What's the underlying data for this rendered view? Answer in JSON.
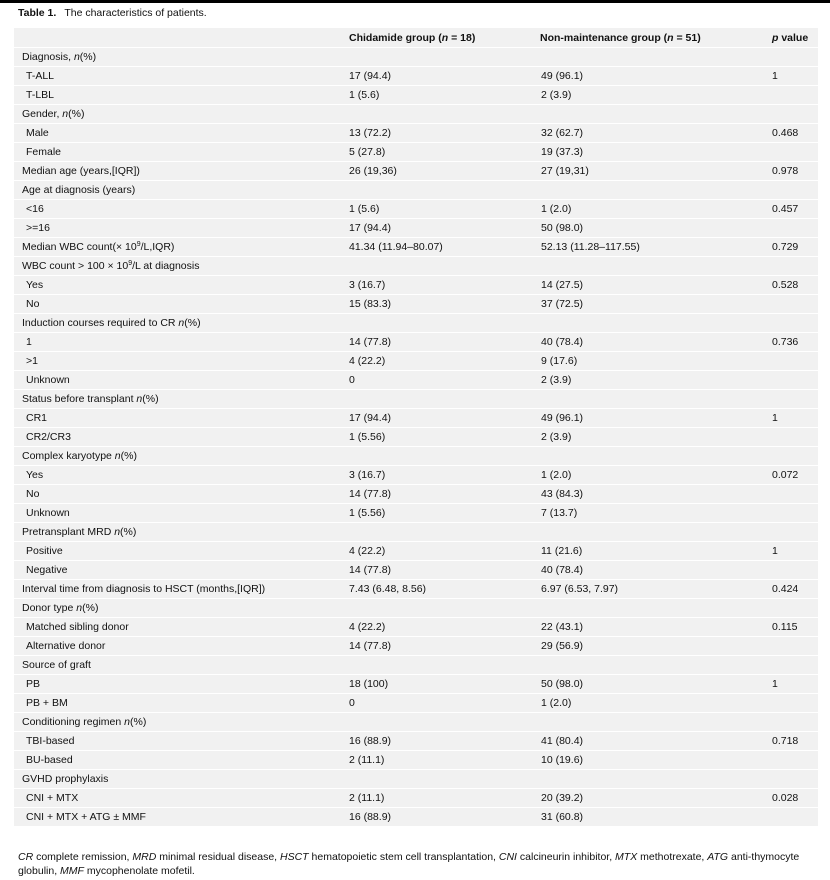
{
  "title": {
    "label": "Table 1.",
    "text": "The characteristics of patients."
  },
  "headers": [
    [
      {
        "t": ""
      }
    ],
    [
      {
        "t": "Chidamide group ("
      },
      {
        "t": "n",
        "i": 1
      },
      {
        "t": " = 18)"
      }
    ],
    [
      {
        "t": "Non-maintenance group ("
      },
      {
        "t": "n",
        "i": 1
      },
      {
        "t": " = 51)"
      }
    ],
    [
      {
        "t": "p",
        "i": 1
      },
      {
        "t": " value"
      }
    ]
  ],
  "rows": [
    {
      "label": [
        {
          "t": "Diagnosis, "
        },
        {
          "t": "n",
          "i": 1
        },
        {
          "t": "(%)"
        }
      ],
      "a": "",
      "b": "",
      "p": ""
    },
    {
      "ind": 1,
      "label": [
        {
          "t": "T-ALL"
        }
      ],
      "a": "17 (94.4)",
      "b": "49 (96.1)",
      "p": "1"
    },
    {
      "ind": 1,
      "label": [
        {
          "t": "T-LBL"
        }
      ],
      "a": "1 (5.6)",
      "b": "2 (3.9)",
      "p": ""
    },
    {
      "label": [
        {
          "t": "Gender, "
        },
        {
          "t": "n",
          "i": 1
        },
        {
          "t": "(%)"
        }
      ],
      "a": "",
      "b": "",
      "p": ""
    },
    {
      "ind": 1,
      "label": [
        {
          "t": "Male"
        }
      ],
      "a": "13 (72.2)",
      "b": "32 (62.7)",
      "p": "0.468"
    },
    {
      "ind": 1,
      "label": [
        {
          "t": "Female"
        }
      ],
      "a": "5 (27.8)",
      "b": "19 (37.3)",
      "p": ""
    },
    {
      "label": [
        {
          "t": "Median age (years,[IQR])"
        }
      ],
      "a": "26 (19,36)",
      "b": "27 (19,31)",
      "p": "0.978"
    },
    {
      "label": [
        {
          "t": "Age at diagnosis (years)"
        }
      ],
      "a": "",
      "b": "",
      "p": ""
    },
    {
      "ind": 1,
      "label": [
        {
          "t": "<16"
        }
      ],
      "a": "1 (5.6)",
      "b": "1 (2.0)",
      "p": "0.457"
    },
    {
      "ind": 1,
      "label": [
        {
          "t": ">=16"
        }
      ],
      "a": "17 (94.4)",
      "b": "50 (98.0)",
      "p": ""
    },
    {
      "label": [
        {
          "t": "Median WBC count(× 10"
        },
        {
          "t": "9",
          "s": 1
        },
        {
          "t": "/L,IQR)"
        }
      ],
      "a": "41.34 (11.94–80.07)",
      "b": "52.13 (11.28–117.55)",
      "p": "0.729"
    },
    {
      "label": [
        {
          "t": "WBC count > 100 × 10"
        },
        {
          "t": "9",
          "s": 1
        },
        {
          "t": "/L at diagnosis"
        }
      ],
      "a": "",
      "b": "",
      "p": ""
    },
    {
      "ind": 1,
      "label": [
        {
          "t": "Yes"
        }
      ],
      "a": "3 (16.7)",
      "b": "14 (27.5)",
      "p": "0.528"
    },
    {
      "ind": 1,
      "label": [
        {
          "t": "No"
        }
      ],
      "a": "15 (83.3)",
      "b": "37 (72.5)",
      "p": ""
    },
    {
      "label": [
        {
          "t": "Induction courses required to CR "
        },
        {
          "t": "n",
          "i": 1
        },
        {
          "t": "(%)"
        }
      ],
      "a": "",
      "b": "",
      "p": ""
    },
    {
      "ind": 1,
      "label": [
        {
          "t": "1"
        }
      ],
      "a": "14 (77.8)",
      "b": "40 (78.4)",
      "p": "0.736"
    },
    {
      "ind": 1,
      "label": [
        {
          "t": ">1"
        }
      ],
      "a": "4 (22.2)",
      "b": "9 (17.6)",
      "p": ""
    },
    {
      "ind": 1,
      "label": [
        {
          "t": "Unknown"
        }
      ],
      "a": "0",
      "b": "2 (3.9)",
      "p": ""
    },
    {
      "label": [
        {
          "t": "Status before transplant "
        },
        {
          "t": "n",
          "i": 1
        },
        {
          "t": "(%)"
        }
      ],
      "a": "",
      "b": "",
      "p": ""
    },
    {
      "ind": 1,
      "label": [
        {
          "t": "CR1"
        }
      ],
      "a": "17 (94.4)",
      "b": "49 (96.1)",
      "p": "1"
    },
    {
      "ind": 1,
      "label": [
        {
          "t": "CR2/CR3"
        }
      ],
      "a": "1 (5.56)",
      "b": "2 (3.9)",
      "p": ""
    },
    {
      "label": [
        {
          "t": "Complex karyotype "
        },
        {
          "t": "n",
          "i": 1
        },
        {
          "t": "(%)"
        }
      ],
      "a": "",
      "b": "",
      "p": ""
    },
    {
      "ind": 1,
      "label": [
        {
          "t": "Yes"
        }
      ],
      "a": "3 (16.7)",
      "b": "1 (2.0)",
      "p": "0.072"
    },
    {
      "ind": 1,
      "label": [
        {
          "t": "No"
        }
      ],
      "a": "14 (77.8)",
      "b": "43 (84.3)",
      "p": ""
    },
    {
      "ind": 1,
      "label": [
        {
          "t": "Unknown"
        }
      ],
      "a": "1 (5.56)",
      "b": "7 (13.7)",
      "p": ""
    },
    {
      "label": [
        {
          "t": "Pretransplant MRD "
        },
        {
          "t": "n",
          "i": 1
        },
        {
          "t": "(%)"
        }
      ],
      "a": "",
      "b": "",
      "p": ""
    },
    {
      "ind": 1,
      "label": [
        {
          "t": "Positive"
        }
      ],
      "a": "4 (22.2)",
      "b": "11 (21.6)",
      "p": "1"
    },
    {
      "ind": 1,
      "label": [
        {
          "t": "Negative"
        }
      ],
      "a": "14 (77.8)",
      "b": "40 (78.4)",
      "p": ""
    },
    {
      "label": [
        {
          "t": "Interval time from diagnosis to HSCT (months,[IQR])"
        }
      ],
      "a": "7.43 (6.48, 8.56)",
      "b": "6.97 (6.53, 7.97)",
      "p": "0.424"
    },
    {
      "label": [
        {
          "t": "Donor type "
        },
        {
          "t": "n",
          "i": 1
        },
        {
          "t": "(%)"
        }
      ],
      "a": "",
      "b": "",
      "p": ""
    },
    {
      "ind": 1,
      "label": [
        {
          "t": "Matched sibling donor"
        }
      ],
      "a": "4 (22.2)",
      "b": "22 (43.1)",
      "p": "0.115"
    },
    {
      "ind": 1,
      "label": [
        {
          "t": "Alternative donor"
        }
      ],
      "a": "14 (77.8)",
      "b": "29 (56.9)",
      "p": ""
    },
    {
      "label": [
        {
          "t": "Source of graft"
        }
      ],
      "a": "",
      "b": "",
      "p": ""
    },
    {
      "ind": 1,
      "label": [
        {
          "t": "PB"
        }
      ],
      "a": "18 (100)",
      "b": "50 (98.0)",
      "p": "1"
    },
    {
      "ind": 1,
      "label": [
        {
          "t": "PB + BM"
        }
      ],
      "a": "0",
      "b": "1 (2.0)",
      "p": ""
    },
    {
      "label": [
        {
          "t": "Conditioning regimen "
        },
        {
          "t": "n",
          "i": 1
        },
        {
          "t": "(%)"
        }
      ],
      "a": "",
      "b": "",
      "p": ""
    },
    {
      "ind": 1,
      "label": [
        {
          "t": "TBI-based"
        }
      ],
      "a": "16 (88.9)",
      "b": "41 (80.4)",
      "p": "0.718"
    },
    {
      "ind": 1,
      "label": [
        {
          "t": "BU-based"
        }
      ],
      "a": "2 (11.1)",
      "b": "10 (19.6)",
      "p": ""
    },
    {
      "label": [
        {
          "t": "GVHD prophylaxis"
        }
      ],
      "a": "",
      "b": "",
      "p": ""
    },
    {
      "ind": 1,
      "label": [
        {
          "t": "CNI + MTX"
        }
      ],
      "a": "2 (11.1)",
      "b": "20 (39.2)",
      "p": "0.028"
    },
    {
      "ind": 1,
      "label": [
        {
          "t": "CNI + MTX + ATG ± MMF"
        }
      ],
      "a": "16 (88.9)",
      "b": "31 (60.8)",
      "p": ""
    }
  ],
  "footnote": [
    {
      "t": "CR",
      "i": 1
    },
    {
      "t": " complete remission, "
    },
    {
      "t": "MRD",
      "i": 1
    },
    {
      "t": " minimal residual disease, "
    },
    {
      "t": "HSCT",
      "i": 1
    },
    {
      "t": " hematopoietic stem cell transplantation, "
    },
    {
      "t": "CNI",
      "i": 1
    },
    {
      "t": " calcineurin inhibitor, "
    },
    {
      "t": "MTX",
      "i": 1
    },
    {
      "t": " methotrexate, "
    },
    {
      "t": "ATG",
      "i": 1
    },
    {
      "t": " anti-thymocyte globulin, "
    },
    {
      "t": "MMF",
      "i": 1
    },
    {
      "t": " mycophenolate mofetil."
    }
  ]
}
